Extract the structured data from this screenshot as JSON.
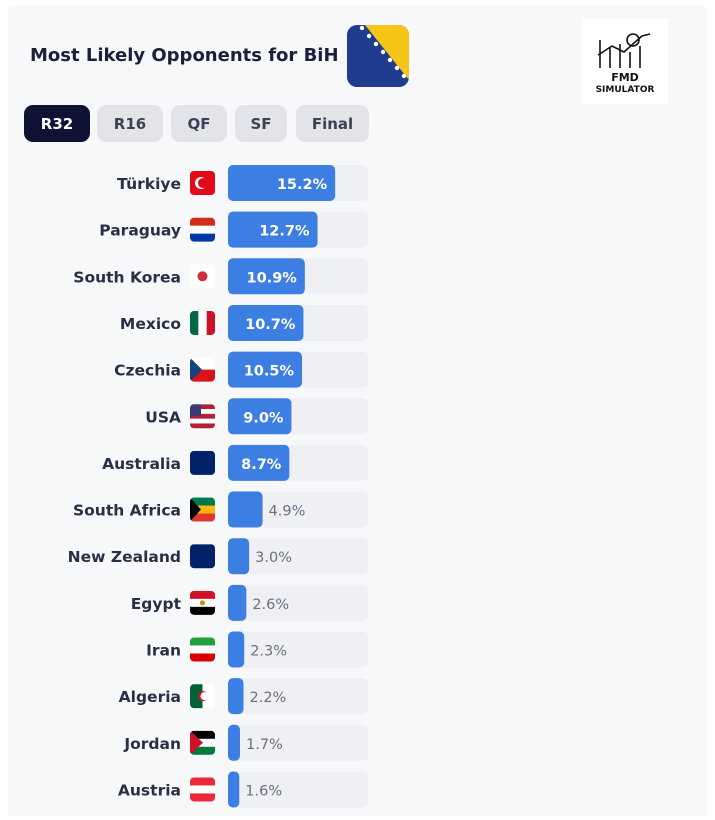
{
  "header": {
    "title": "Most Likely Opponents for BiH",
    "logo": [
      "FMD",
      "SIMULATOR"
    ]
  },
  "tabs": [
    "R32",
    "R16",
    "QF",
    "SF",
    "Final"
  ],
  "active_tab": 0,
  "chart_data": {
    "type": "bar",
    "orientation": "horizontal",
    "categories": [
      "Türkiye",
      "Paraguay",
      "South Korea",
      "Mexico",
      "Czechia",
      "USA",
      "Australia",
      "South Africa",
      "New Zealand",
      "Egypt",
      "Iran",
      "Algeria",
      "Jordan",
      "Austria"
    ],
    "values": [
      15.2,
      12.7,
      10.9,
      10.7,
      10.5,
      9.0,
      8.7,
      4.9,
      3.0,
      2.6,
      2.3,
      2.2,
      1.7,
      1.6
    ],
    "value_labels": [
      "15.2%",
      "12.7%",
      "10.9%",
      "10.7%",
      "10.5%",
      "9.0%",
      "8.7%",
      "4.9%",
      "3.0%",
      "2.6%",
      "2.3%",
      "2.2%",
      "1.7%",
      "1.6%"
    ],
    "color": "#3d7ee3"
  }
}
